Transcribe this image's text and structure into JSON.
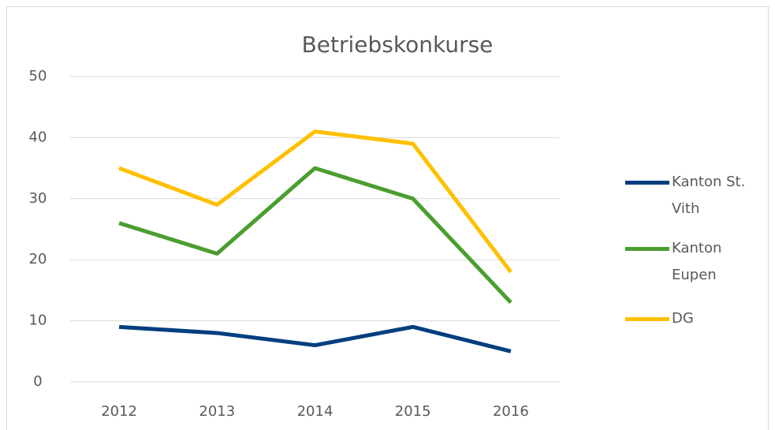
{
  "chart_data": {
    "type": "line",
    "title": "Betriebskonkurse",
    "categories": [
      "2012",
      "2013",
      "2014",
      "2015",
      "2016"
    ],
    "series": [
      {
        "name": "Kanton St. Vith",
        "color": "#003f7f",
        "values": [
          9,
          8,
          6,
          9,
          5
        ]
      },
      {
        "name": "Kanton Eupen",
        "color": "#4a9e2f",
        "values": [
          26,
          21,
          35,
          30,
          13
        ]
      },
      {
        "name": "DG",
        "color": "#ffc000",
        "values": [
          35,
          29,
          41,
          39,
          18
        ]
      }
    ],
    "ylim": [
      0,
      50
    ],
    "yticks": [
      0,
      10,
      20,
      30,
      40,
      50
    ],
    "grid": true,
    "legend": "right"
  }
}
